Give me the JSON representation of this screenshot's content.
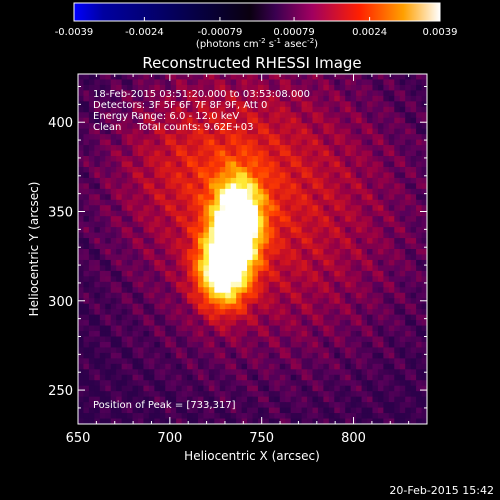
{
  "chart_data": {
    "type": "heatmap",
    "title": "Reconstructed RHESSI Image",
    "xlabel": "Heliocentric X (arcsec)",
    "ylabel": "Heliocentric Y (arcsec)",
    "xlim": [
      650,
      840
    ],
    "ylim": [
      231,
      427
    ],
    "x_ticks": [
      650,
      700,
      750,
      800
    ],
    "y_ticks": [
      250,
      300,
      350,
      400
    ],
    "colorbar": {
      "range": [
        -0.0039,
        0.0039
      ],
      "tick_labels": [
        "-0.0039",
        "-0.0024",
        "-0.00079",
        "0.00079",
        "0.0024",
        "0.0039"
      ],
      "units_prefix": "(photons cm",
      "units_sup1": "-2",
      "units_mid": " s",
      "units_sup2": "-1",
      "units_mid2": " asec",
      "units_sup3": "-2",
      "units_suffix": ")"
    },
    "annotations": [
      "18-Feb-2015 03:51:20.000 to 03:53:08.000",
      "Detectors: 3F 5F 6F 7F 8F 9F, Att 0",
      "Energy Range: 6.0 - 12.0 keV",
      "Clean     Total counts: 9.62E+03"
    ],
    "peak_label": "Position of Peak = [733,317]",
    "peak": [
      733,
      317
    ],
    "footer_timestamp": "20-Feb-2015 15:42",
    "grid": false,
    "colormap": "rhessi-blue-black-red-yellow-white"
  }
}
